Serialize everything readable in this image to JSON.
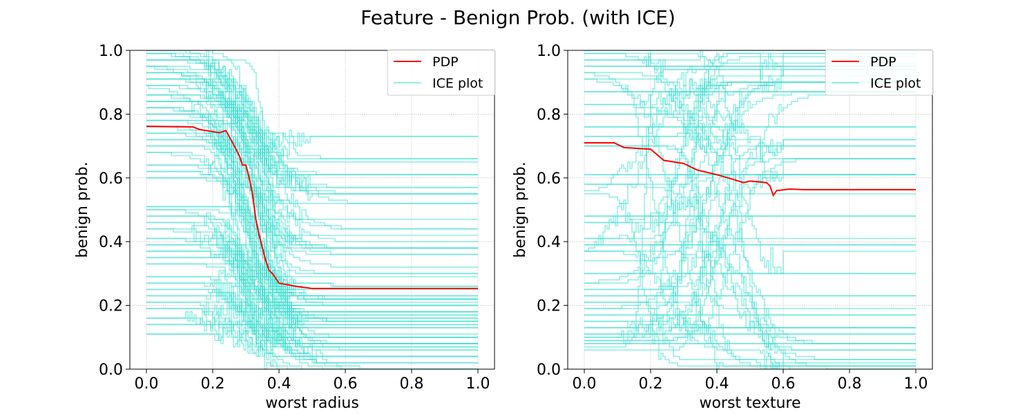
{
  "figure": {
    "title": "Feature - Benign Prob. (with ICE)"
  },
  "colors": {
    "pdp": "#ff0000",
    "ice": "#40e0d0",
    "grid": "#b0b0b0"
  },
  "legend": {
    "pdp_label": "PDP",
    "ice_label": "ICE plot",
    "placement": "upper right"
  },
  "chart_data": [
    {
      "type": "line",
      "title": "",
      "xlabel": "worst radius",
      "ylabel": "benign prob.",
      "xlim": [
        -0.05,
        1.05
      ],
      "ylim": [
        0.0,
        1.0
      ],
      "xticks": [
        "0.0",
        "0.2",
        "0.4",
        "0.6",
        "0.8",
        "1.0"
      ],
      "yticks": [
        "0.0",
        "0.2",
        "0.4",
        "0.6",
        "0.8",
        "1.0"
      ],
      "grid": true,
      "legend": "top-right",
      "series": [
        {
          "name": "PDP",
          "x": [
            0.0,
            0.14,
            0.16,
            0.2,
            0.22,
            0.24,
            0.26,
            0.28,
            0.29,
            0.3,
            0.31,
            0.32,
            0.33,
            0.34,
            0.35,
            0.36,
            0.37,
            0.38,
            0.4,
            0.45,
            0.5,
            1.0
          ],
          "y": [
            0.762,
            0.76,
            0.752,
            0.745,
            0.742,
            0.748,
            0.71,
            0.67,
            0.64,
            0.64,
            0.6,
            0.55,
            0.47,
            0.42,
            0.38,
            0.34,
            0.31,
            0.3,
            0.27,
            0.26,
            0.253,
            0.253
          ]
        }
      ],
      "ice": {
        "count": 90,
        "drop_center": 0.32,
        "drop_spread": 0.06,
        "start_values": [
          1.0,
          0.99,
          0.97,
          0.95,
          0.93,
          0.91,
          0.89,
          0.86,
          0.84,
          0.82,
          0.8,
          0.78,
          0.76,
          0.74,
          0.72,
          0.7,
          0.68,
          0.64,
          0.62,
          0.6,
          0.51,
          0.5,
          0.48,
          0.46,
          0.44,
          0.41,
          0.39,
          0.37,
          0.35,
          0.33,
          0.29,
          0.27,
          0.25,
          0.23,
          0.21,
          0.19,
          0.16,
          0.14,
          0.11
        ],
        "end_values": [
          0.73,
          0.66,
          0.65,
          0.63,
          0.61,
          0.57,
          0.55,
          0.52,
          0.5,
          0.47,
          0.46,
          0.44,
          0.42,
          0.4,
          0.38,
          0.36,
          0.34,
          0.32,
          0.3,
          0.28,
          0.25,
          0.22,
          0.2,
          0.18,
          0.15,
          0.13,
          0.1,
          0.08,
          0.06,
          0.04,
          0.02,
          0.0
        ]
      }
    },
    {
      "type": "line",
      "title": "",
      "xlabel": "worst texture",
      "ylabel": "benign prob.",
      "xlim": [
        -0.05,
        1.05
      ],
      "ylim": [
        0.0,
        1.0
      ],
      "xticks": [
        "0.0",
        "0.2",
        "0.4",
        "0.6",
        "0.8",
        "1.0"
      ],
      "yticks": [
        "0.0",
        "0.2",
        "0.4",
        "0.6",
        "0.8",
        "1.0"
      ],
      "grid": true,
      "legend": "top-right",
      "series": [
        {
          "name": "PDP",
          "x": [
            0.0,
            0.09,
            0.12,
            0.2,
            0.24,
            0.3,
            0.34,
            0.4,
            0.45,
            0.48,
            0.5,
            0.55,
            0.56,
            0.57,
            0.58,
            0.62,
            0.66,
            1.0
          ],
          "y": [
            0.71,
            0.71,
            0.695,
            0.69,
            0.655,
            0.645,
            0.625,
            0.61,
            0.595,
            0.585,
            0.59,
            0.585,
            0.575,
            0.545,
            0.56,
            0.565,
            0.563,
            0.563
          ]
        }
      ],
      "ice": {
        "count": 70,
        "drop_center": 0.32,
        "drop_spread": 0.16,
        "start_values": [
          1.0,
          0.99,
          0.97,
          0.95,
          0.93,
          0.91,
          0.87,
          0.83,
          0.8,
          0.76,
          0.73,
          0.7,
          0.61,
          0.58,
          0.55,
          0.48,
          0.46,
          0.41,
          0.39,
          0.37,
          0.34,
          0.3,
          0.27,
          0.25,
          0.23,
          0.21,
          0.19,
          0.17,
          0.15,
          0.13,
          0.11,
          0.1,
          0.09,
          0.08,
          0.07,
          0.06
        ],
        "end_values": [
          0.99,
          0.98,
          0.96,
          0.94,
          0.92,
          0.9,
          0.87,
          0.74,
          0.72,
          0.7,
          0.66,
          0.61,
          0.55,
          0.41,
          0.37,
          0.27,
          0.19,
          0.16,
          0.13,
          0.08,
          0.06,
          0.03,
          0.02,
          0.01,
          0.0
        ]
      }
    }
  ]
}
